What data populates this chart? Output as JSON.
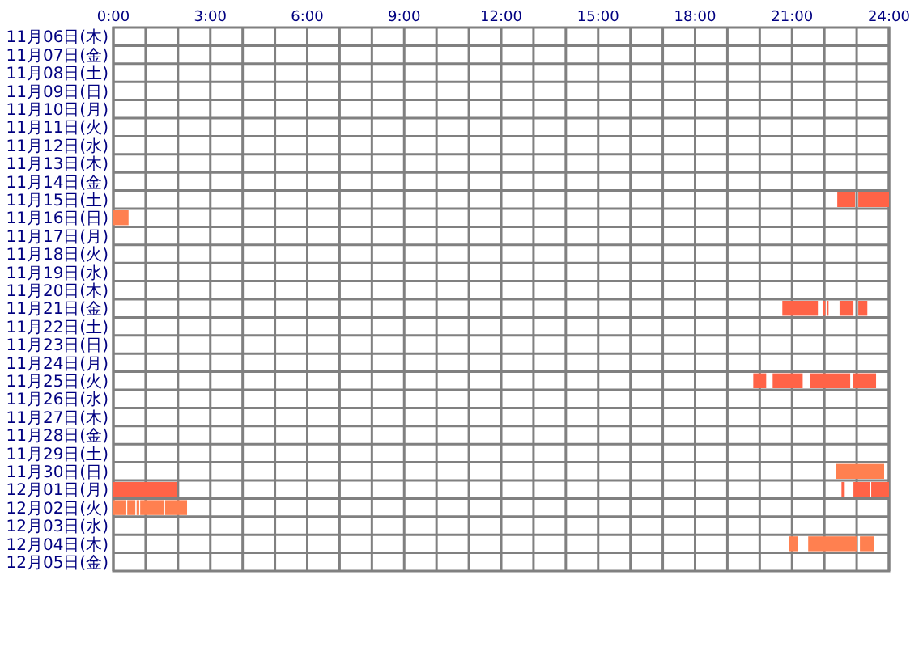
{
  "chart_data": {
    "type": "bar",
    "orientation": "horizontal",
    "grid": true,
    "categories": [
      "11月06日(木)",
      "11月07日(金)",
      "11月08日(土)",
      "11月09日(日)",
      "11月10日(月)",
      "11月11日(火)",
      "11月12日(水)",
      "11月13日(木)",
      "11月14日(金)",
      "11月15日(土)",
      "11月16日(日)",
      "11月17日(月)",
      "11月18日(火)",
      "11月19日(水)",
      "11月20日(木)",
      "11月21日(金)",
      "11月22日(土)",
      "11月23日(日)",
      "11月24日(月)",
      "11月25日(火)",
      "11月26日(水)",
      "11月27日(木)",
      "11月28日(金)",
      "11月29日(土)",
      "11月30日(日)",
      "12月01日(月)",
      "12月02日(火)",
      "12月03日(水)",
      "12月04日(木)",
      "12月05日(金)"
    ],
    "xlim": [
      0,
      24
    ],
    "xticks": [
      {
        "value": 0,
        "label": "0:00"
      },
      {
        "value": 1,
        "label": null
      },
      {
        "value": 2,
        "label": null
      },
      {
        "value": 3,
        "label": "3:00"
      },
      {
        "value": 4,
        "label": null
      },
      {
        "value": 5,
        "label": null
      },
      {
        "value": 6,
        "label": "6:00"
      },
      {
        "value": 7,
        "label": null
      },
      {
        "value": 8,
        "label": null
      },
      {
        "value": 9,
        "label": "9:00"
      },
      {
        "value": 10,
        "label": null
      },
      {
        "value": 11,
        "label": null
      },
      {
        "value": 12,
        "label": "12:00"
      },
      {
        "value": 13,
        "label": null
      },
      {
        "value": 14,
        "label": null
      },
      {
        "value": 15,
        "label": "15:00"
      },
      {
        "value": 16,
        "label": null
      },
      {
        "value": 17,
        "label": null
      },
      {
        "value": 18,
        "label": "18:00"
      },
      {
        "value": 19,
        "label": null
      },
      {
        "value": 20,
        "label": null
      },
      {
        "value": 21,
        "label": "21:00"
      },
      {
        "value": 22,
        "label": null
      },
      {
        "value": 23,
        "label": null
      },
      {
        "value": 24,
        "label": "24:00"
      }
    ],
    "series": [
      {
        "values": [
          null,
          null,
          null,
          null,
          null,
          null,
          null,
          null,
          null,
          0.55,
          0.47,
          null,
          null,
          null,
          null,
          1.1,
          null,
          null,
          null,
          0.4,
          null,
          null,
          null,
          null,
          1.5,
          1.97,
          0.4,
          null,
          0.28,
          null
        ],
        "base": [
          null,
          null,
          null,
          null,
          null,
          null,
          null,
          null,
          null,
          22.4,
          0,
          null,
          null,
          null,
          null,
          20.7,
          null,
          null,
          null,
          19.8,
          null,
          null,
          null,
          null,
          22.35,
          0,
          0,
          null,
          20.9,
          null
        ],
        "colors": [
          null,
          null,
          null,
          null,
          null,
          null,
          null,
          null,
          null,
          "#ff6347",
          "#ff8050",
          null,
          null,
          null,
          null,
          "#ff6347",
          null,
          null,
          null,
          "#ff6347",
          null,
          null,
          null,
          null,
          "#ff8050",
          "#ff6347",
          "#ff8050",
          null,
          "#ff8050",
          null
        ]
      },
      {
        "values": [
          null,
          null,
          null,
          null,
          null,
          null,
          null,
          null,
          null,
          0.95,
          null,
          null,
          null,
          null,
          null,
          0.06,
          null,
          null,
          null,
          0.93,
          null,
          null,
          null,
          null,
          null,
          0.1,
          0.25,
          null,
          1.5,
          null
        ],
        "base": [
          null,
          null,
          null,
          null,
          null,
          null,
          null,
          null,
          null,
          23.05,
          null,
          null,
          null,
          null,
          null,
          21.97,
          null,
          null,
          null,
          20.4,
          null,
          null,
          null,
          null,
          null,
          22.53,
          0.43,
          null,
          21.5,
          null
        ],
        "colors": [
          null,
          null,
          null,
          null,
          null,
          null,
          null,
          null,
          null,
          "#ff6347",
          null,
          null,
          null,
          null,
          null,
          "#ff6347",
          null,
          null,
          null,
          "#ff6347",
          null,
          null,
          null,
          null,
          null,
          "#ff6347",
          "#ff8050",
          null,
          "#ff8050",
          null
        ]
      },
      {
        "values": [
          null,
          null,
          null,
          null,
          null,
          null,
          null,
          null,
          null,
          null,
          null,
          null,
          null,
          null,
          null,
          0.06,
          null,
          null,
          null,
          1.25,
          null,
          null,
          null,
          null,
          null,
          0.5,
          0.08,
          null,
          0.43,
          null
        ],
        "base": [
          null,
          null,
          null,
          null,
          null,
          null,
          null,
          null,
          null,
          null,
          null,
          null,
          null,
          null,
          null,
          22.07,
          null,
          null,
          null,
          21.55,
          null,
          null,
          null,
          null,
          null,
          22.9,
          0.72,
          null,
          23.1,
          null
        ],
        "colors": [
          null,
          null,
          null,
          null,
          null,
          null,
          null,
          null,
          null,
          null,
          null,
          null,
          null,
          null,
          null,
          "#ff6347",
          null,
          null,
          null,
          "#ff6347",
          null,
          null,
          null,
          null,
          null,
          "#ff6347",
          "#ff8050",
          null,
          "#ff8050",
          null
        ]
      },
      {
        "values": [
          null,
          null,
          null,
          null,
          null,
          null,
          null,
          null,
          null,
          null,
          null,
          null,
          null,
          null,
          null,
          0.43,
          null,
          null,
          null,
          0.72,
          null,
          null,
          null,
          null,
          null,
          0.55,
          0.74,
          null,
          null,
          null
        ],
        "base": [
          null,
          null,
          null,
          null,
          null,
          null,
          null,
          null,
          null,
          null,
          null,
          null,
          null,
          null,
          null,
          22.47,
          null,
          null,
          null,
          22.88,
          null,
          null,
          null,
          null,
          null,
          23.45,
          0.83,
          null,
          null,
          null
        ],
        "colors": [
          null,
          null,
          null,
          null,
          null,
          null,
          null,
          null,
          null,
          null,
          null,
          null,
          null,
          null,
          null,
          "#ff6347",
          null,
          null,
          null,
          "#ff6347",
          null,
          null,
          null,
          null,
          null,
          "#ff6347",
          "#ff8050",
          null,
          null,
          null
        ]
      },
      {
        "values": [
          null,
          null,
          null,
          null,
          null,
          null,
          null,
          null,
          null,
          null,
          null,
          null,
          null,
          null,
          null,
          0.28,
          null,
          null,
          null,
          null,
          null,
          null,
          null,
          null,
          null,
          null,
          0.68,
          null,
          null,
          null
        ],
        "base": [
          null,
          null,
          null,
          null,
          null,
          null,
          null,
          null,
          null,
          null,
          null,
          null,
          null,
          null,
          null,
          23.05,
          null,
          null,
          null,
          null,
          null,
          null,
          null,
          null,
          null,
          null,
          1.6,
          null,
          null,
          null
        ],
        "colors": [
          null,
          null,
          null,
          null,
          null,
          null,
          null,
          null,
          null,
          null,
          null,
          null,
          null,
          null,
          null,
          "#ff6347",
          null,
          null,
          null,
          null,
          null,
          null,
          null,
          null,
          null,
          null,
          "#ff8050",
          null,
          null,
          null
        ]
      }
    ]
  }
}
